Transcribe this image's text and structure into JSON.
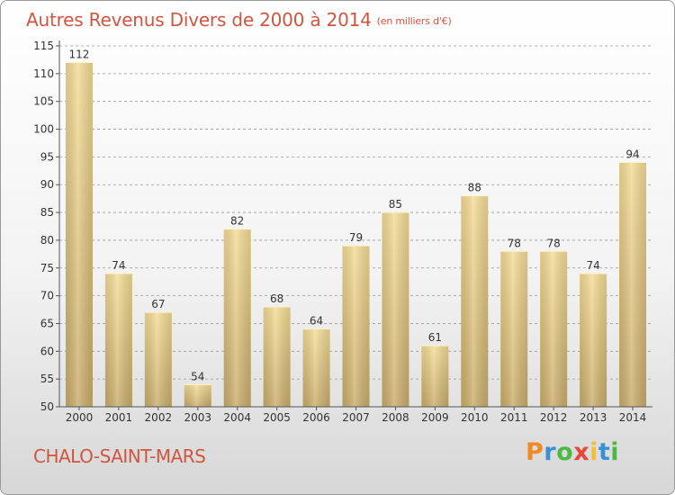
{
  "title": "Autres Revenus Divers de 2000 à 2014",
  "title_unit": "(en milliers d'€)",
  "location": "CHALO-SAINT-MARS",
  "logo": {
    "letters": [
      "P",
      "r",
      "o",
      "x",
      "i",
      "t",
      "i"
    ],
    "colors": [
      "#f08a24",
      "#3a8fd6",
      "#4db848",
      "#e9473a",
      "#f2c12e",
      "#3a8fd6",
      "#4db848"
    ]
  },
  "colors": {
    "bar_light": "#f5dd97",
    "bar_dark": "#c9ad6b",
    "title": "#d2553f",
    "grid": "#999999"
  },
  "chart_data": {
    "type": "bar",
    "categories": [
      "2000",
      "2001",
      "2002",
      "2003",
      "2004",
      "2005",
      "2006",
      "2007",
      "2008",
      "2009",
      "2010",
      "2011",
      "2012",
      "2013",
      "2014"
    ],
    "values": [
      112,
      74,
      67,
      54,
      82,
      68,
      64,
      79,
      85,
      61,
      88,
      78,
      78,
      74,
      94
    ],
    "title": "Autres Revenus Divers de 2000 à 2014",
    "xlabel": "",
    "ylabel": "",
    "ylim": [
      50,
      115
    ],
    "yticks": [
      50,
      55,
      60,
      65,
      70,
      75,
      80,
      85,
      90,
      95,
      100,
      105,
      110,
      115
    ],
    "grid": true,
    "data_labels": true
  }
}
